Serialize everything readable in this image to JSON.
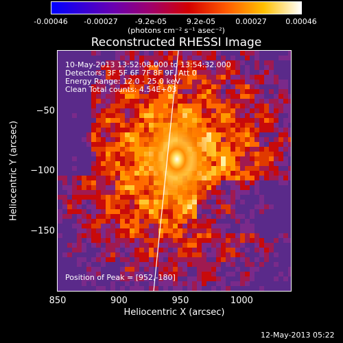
{
  "colorbar": {
    "ticks": [
      "-0.00046",
      "-0.00027",
      "-9.2e-05",
      "9.2e-05",
      "0.00027",
      "0.00046"
    ],
    "units": "(photons cm⁻² s⁻¹ asec⁻²)"
  },
  "chart_data": {
    "type": "heatmap",
    "title": "Reconstructed RHESSI Image",
    "xlabel": "Heliocentric X (arcsec)",
    "ylabel": "Heliocentric Y (arcsec)",
    "xlim": [
      850,
      1040
    ],
    "ylim": [
      -200,
      0
    ],
    "x_ticks": [
      850,
      900,
      950,
      1000
    ],
    "y_ticks": [
      -50,
      -100,
      -150
    ],
    "x_tick_labels": [
      "850",
      "900",
      "950",
      "1000"
    ],
    "y_tick_labels": [
      "-50",
      "-100",
      "-150"
    ],
    "peak": [
      952,
      -180
    ],
    "colormap_range": [
      -0.00046,
      0.00046
    ],
    "annotations": {
      "time_range": "10-May-2013 13:52:08.000 to 13:54:32.000",
      "detectors": "Detectors: 3F 5F 6F 7F 8F 9F, Att 0",
      "energy_range": "Energy Range: 12.0 - 25.0 keV",
      "clean": "Clean    Total counts: 4.54E+03",
      "peak_label": "Position of Peak = [952,-180]"
    }
  },
  "footer": {
    "date": "12-May-2013 05:22"
  }
}
